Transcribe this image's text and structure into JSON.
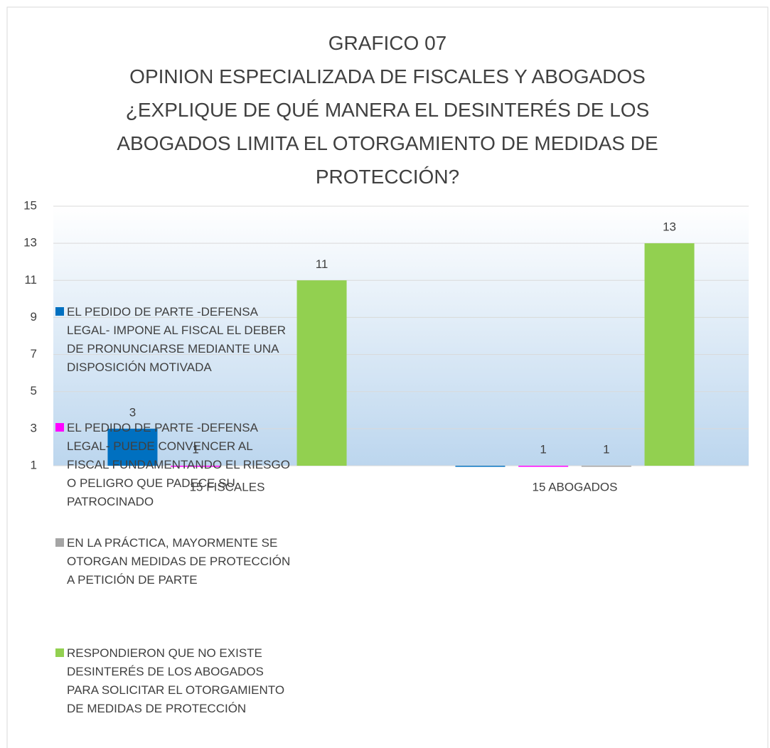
{
  "chart_data": {
    "type": "bar",
    "title": "GRAFICO 07",
    "subtitle": "OPINION ESPECIALIZADA DE FISCALES Y ABOGADOS ¿EXPLIQUE DE QUÉ MANERA EL DESINTERÉS DE LOS ABOGADOS  LIMITA EL OTORGAMIENTO DE MEDIDAS DE PROTECCIÓN?",
    "categories": [
      "15 FISCALES",
      "15 ABOGADOS"
    ],
    "series": [
      {
        "name": "EL PEDIDO DE PARTE -DEFENSA LEGAL- IMPONE AL FISCAL EL DEBER DE PRONUNCIARSE MEDIANTE UNA DISPOSICIÓN MOTIVADA",
        "color": "#0070c0",
        "values": [
          3,
          1
        ],
        "value_labels": [
          "3",
          null
        ]
      },
      {
        "name": "EL PEDIDO DE PARTE -DEFENSA LEGAL- PUEDE CONVENCER AL FISCAL FUNDAMENTANDO EL RIESGO O PELIGRO QUE PADECE SU PATROCINADO",
        "color": "#ff00ff",
        "values": [
          1,
          1
        ]
      },
      {
        "name": "EN LA PRÁCTICA, MAYORMENTE SE OTORGAN MEDIDAS DE PROTECCIÓN A PETICIÓN DE PARTE",
        "color": "#a5a5a5",
        "values": [
          null,
          1
        ]
      },
      {
        "name": "RESPONDIERON QUE NO EXISTE DESINTERÉS DE LOS ABOGADOS PARA SOLICITAR EL OTORGAMIENTO DE MEDIDAS DE PROTECCIÓN",
        "color": "#92d050",
        "values": [
          11,
          13
        ]
      }
    ],
    "ylim": [
      1,
      15
    ],
    "yticks": [
      1,
      3,
      5,
      7,
      9,
      11,
      13,
      15
    ],
    "grid": true,
    "legend": "left"
  }
}
